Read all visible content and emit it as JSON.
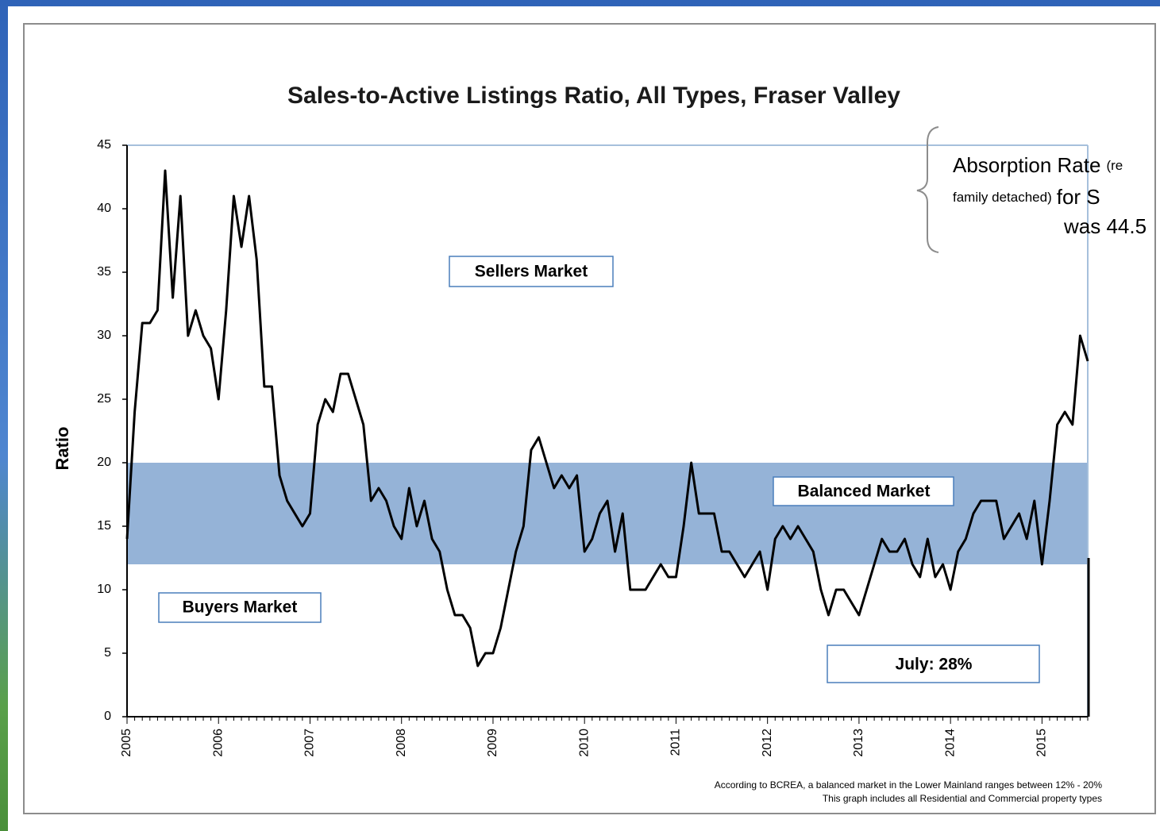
{
  "chart_data": {
    "type": "line",
    "title": "Sales-to-Active Listings Ratio, All Types, Fraser Valley",
    "ylabel": "Ratio",
    "categories": [
      "2005",
      null,
      null,
      null,
      null,
      null,
      null,
      null,
      null,
      null,
      null,
      null,
      "2006",
      null,
      null,
      null,
      null,
      null,
      null,
      null,
      null,
      null,
      null,
      null,
      "2007",
      null,
      null,
      null,
      null,
      null,
      null,
      null,
      null,
      null,
      null,
      null,
      "2008",
      null,
      null,
      null,
      null,
      null,
      null,
      null,
      null,
      null,
      null,
      null,
      "2009",
      null,
      null,
      null,
      null,
      null,
      null,
      null,
      null,
      null,
      null,
      null,
      "2010",
      null,
      null,
      null,
      null,
      null,
      null,
      null,
      null,
      null,
      null,
      null,
      "2011",
      null,
      null,
      null,
      null,
      null,
      null,
      null,
      null,
      null,
      null,
      null,
      "2012",
      null,
      null,
      null,
      null,
      null,
      null,
      null,
      null,
      null,
      null,
      null,
      "2013",
      null,
      null,
      null,
      null,
      null,
      null,
      null,
      null,
      null,
      null,
      null,
      "2014",
      null,
      null,
      null,
      null,
      null,
      null,
      null,
      null,
      null,
      null,
      null,
      "2015",
      null,
      null,
      null,
      null,
      null,
      null
    ],
    "values": [
      14,
      24,
      31,
      31,
      32,
      43,
      33,
      41,
      30,
      32,
      30,
      29,
      25,
      32,
      41,
      37,
      41,
      36,
      26,
      26,
      19,
      17,
      16,
      15,
      16,
      23,
      25,
      24,
      27,
      27,
      25,
      23,
      17,
      18,
      17,
      15,
      14,
      18,
      15,
      17,
      14,
      13,
      10,
      8,
      8,
      7,
      4,
      5,
      5,
      7,
      10,
      13,
      15,
      21,
      22,
      20,
      18,
      19,
      18,
      19,
      13,
      14,
      16,
      17,
      13,
      16,
      10,
      10,
      10,
      11,
      12,
      11,
      11,
      15,
      20,
      16,
      16,
      16,
      13,
      13,
      12,
      11,
      12,
      13,
      10,
      14,
      15,
      14,
      15,
      14,
      13,
      10,
      8,
      10,
      10,
      9,
      8,
      10,
      12,
      14,
      13,
      13,
      14,
      12,
      11,
      14,
      11,
      12,
      10,
      13,
      14,
      16,
      17,
      17,
      17,
      14,
      15,
      16,
      14,
      17,
      12,
      17,
      23,
      24,
      23,
      30,
      28
    ],
    "color": "#000000",
    "ylim": [
      0,
      45
    ],
    "yticks": [
      0,
      5,
      10,
      15,
      20,
      25,
      30,
      35,
      40,
      45
    ],
    "band": {
      "from": 12,
      "to": 20,
      "color": "#95b3d7"
    },
    "annotations": {
      "sellers": "Sellers Market",
      "balanced": "Balanced Market",
      "buyers": "Buyers Market",
      "july": "July: 28%"
    },
    "footnotes": [
      "According to BCREA, a balanced market in the Lower Mainland ranges between 12% - 20%",
      "This graph includes all Residential and Commercial property types"
    ],
    "callout": [
      [
        "Absorption Rate",
        "(re"
      ],
      [
        "family detached)",
        "for S"
      ],
      [
        "was 44.5"
      ]
    ]
  }
}
